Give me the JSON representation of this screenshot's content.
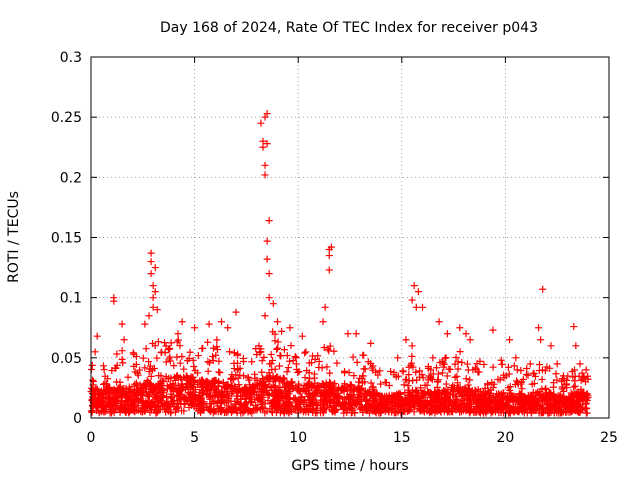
{
  "chart_data": {
    "type": "scatter",
    "title": "Day 168 of 2024, Rate Of TEC Index for receiver p043",
    "xlabel": "GPS time / hours",
    "ylabel": "ROTI / TECUs",
    "xlim": [
      0,
      25
    ],
    "ylim": [
      0,
      0.3
    ],
    "x_ticks": [
      0,
      5,
      10,
      15,
      20,
      25
    ],
    "y_ticks": [
      0,
      0.05,
      0.1,
      0.15,
      0.2,
      0.25,
      0.3
    ],
    "grid": true,
    "marker": "+",
    "marker_color": "#ff0000",
    "points": [
      [
        0.2,
        0.055
      ],
      [
        0.3,
        0.068
      ],
      [
        1.1,
        0.1
      ],
      [
        1.1,
        0.097
      ],
      [
        1.5,
        0.078
      ],
      [
        1.6,
        0.065
      ],
      [
        2.6,
        0.078
      ],
      [
        2.8,
        0.085
      ],
      [
        2.9,
        0.137
      ],
      [
        2.9,
        0.13
      ],
      [
        2.9,
        0.12
      ],
      [
        3.0,
        0.11
      ],
      [
        3.0,
        0.1
      ],
      [
        3.0,
        0.092
      ],
      [
        3.1,
        0.125
      ],
      [
        3.1,
        0.105
      ],
      [
        3.2,
        0.09
      ],
      [
        4.2,
        0.07
      ],
      [
        4.4,
        0.08
      ],
      [
        5.0,
        0.075
      ],
      [
        5.7,
        0.078
      ],
      [
        6.3,
        0.08
      ],
      [
        6.6,
        0.075
      ],
      [
        7.0,
        0.088
      ],
      [
        8.2,
        0.245
      ],
      [
        8.3,
        0.23
      ],
      [
        8.3,
        0.225
      ],
      [
        8.4,
        0.25
      ],
      [
        8.5,
        0.253
      ],
      [
        8.4,
        0.21
      ],
      [
        8.4,
        0.202
      ],
      [
        8.5,
        0.228
      ],
      [
        8.6,
        0.164
      ],
      [
        8.5,
        0.147
      ],
      [
        8.5,
        0.132
      ],
      [
        8.6,
        0.12
      ],
      [
        8.6,
        0.1
      ],
      [
        8.4,
        0.085
      ],
      [
        8.8,
        0.095
      ],
      [
        9.0,
        0.08
      ],
      [
        9.2,
        0.072
      ],
      [
        9.6,
        0.075
      ],
      [
        10.2,
        0.068
      ],
      [
        11.2,
        0.08
      ],
      [
        11.3,
        0.092
      ],
      [
        11.5,
        0.14
      ],
      [
        11.5,
        0.135
      ],
      [
        11.6,
        0.142
      ],
      [
        11.5,
        0.123
      ],
      [
        12.4,
        0.07
      ],
      [
        12.8,
        0.07
      ],
      [
        13.5,
        0.062
      ],
      [
        14.8,
        0.05
      ],
      [
        15.2,
        0.065
      ],
      [
        15.5,
        0.098
      ],
      [
        15.6,
        0.11
      ],
      [
        15.7,
        0.092
      ],
      [
        15.8,
        0.105
      ],
      [
        16.0,
        0.092
      ],
      [
        15.5,
        0.06
      ],
      [
        16.5,
        0.05
      ],
      [
        16.8,
        0.08
      ],
      [
        17.2,
        0.07
      ],
      [
        17.8,
        0.075
      ],
      [
        18.1,
        0.07
      ],
      [
        18.3,
        0.065
      ],
      [
        19.4,
        0.073
      ],
      [
        19.8,
        0.048
      ],
      [
        20.2,
        0.065
      ],
      [
        20.5,
        0.05
      ],
      [
        21.2,
        0.045
      ],
      [
        21.6,
        0.075
      ],
      [
        21.7,
        0.065
      ],
      [
        21.8,
        0.107
      ],
      [
        22.2,
        0.06
      ],
      [
        22.5,
        0.045
      ],
      [
        23.3,
        0.076
      ],
      [
        23.4,
        0.06
      ],
      [
        23.6,
        0.045
      ],
      [
        23.9,
        0.04
      ]
    ],
    "density_profile": [
      [
        0,
        0.025,
        0.055
      ],
      [
        0.5,
        0.02,
        0.045
      ],
      [
        1,
        0.022,
        0.05
      ],
      [
        1.5,
        0.022,
        0.052
      ],
      [
        2,
        0.022,
        0.05
      ],
      [
        2.5,
        0.025,
        0.058
      ],
      [
        3,
        0.025,
        0.06
      ],
      [
        3.5,
        0.028,
        0.06
      ],
      [
        4,
        0.03,
        0.065
      ],
      [
        4.5,
        0.032,
        0.068
      ],
      [
        5,
        0.03,
        0.062
      ],
      [
        5.5,
        0.028,
        0.06
      ],
      [
        6,
        0.028,
        0.062
      ],
      [
        6.5,
        0.025,
        0.055
      ],
      [
        7,
        0.022,
        0.05
      ],
      [
        7.5,
        0.022,
        0.05
      ],
      [
        8,
        0.028,
        0.06
      ],
      [
        8.5,
        0.032,
        0.07
      ],
      [
        9,
        0.03,
        0.068
      ],
      [
        9.5,
        0.028,
        0.06
      ],
      [
        10,
        0.025,
        0.055
      ],
      [
        10.5,
        0.025,
        0.052
      ],
      [
        11,
        0.025,
        0.055
      ],
      [
        11.5,
        0.026,
        0.058
      ],
      [
        12,
        0.025,
        0.055
      ],
      [
        12.5,
        0.024,
        0.055
      ],
      [
        13,
        0.022,
        0.05
      ],
      [
        13.5,
        0.02,
        0.045
      ],
      [
        14,
        0.015,
        0.035
      ],
      [
        14.5,
        0.015,
        0.035
      ],
      [
        15,
        0.018,
        0.042
      ],
      [
        15.5,
        0.02,
        0.048
      ],
      [
        16,
        0.018,
        0.042
      ],
      [
        16.5,
        0.018,
        0.04
      ],
      [
        17,
        0.02,
        0.045
      ],
      [
        17.5,
        0.022,
        0.05
      ],
      [
        18,
        0.022,
        0.052
      ],
      [
        18.5,
        0.02,
        0.045
      ],
      [
        19,
        0.018,
        0.042
      ],
      [
        19.5,
        0.016,
        0.038
      ],
      [
        20,
        0.018,
        0.042
      ],
      [
        20.5,
        0.017,
        0.04
      ],
      [
        21,
        0.016,
        0.038
      ],
      [
        21.5,
        0.018,
        0.042
      ],
      [
        22,
        0.018,
        0.04
      ],
      [
        22.5,
        0.015,
        0.035
      ],
      [
        23,
        0.014,
        0.032
      ],
      [
        23.5,
        0.018,
        0.04
      ],
      [
        24,
        0.016,
        0.035
      ]
    ]
  }
}
